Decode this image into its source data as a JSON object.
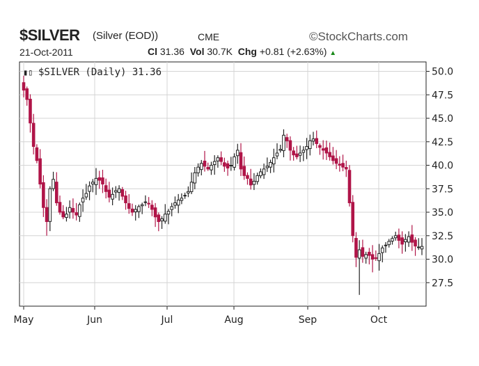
{
  "header": {
    "symbol": "$SILVER",
    "description": "(Silver (EOD))",
    "exchange": "CME",
    "brand": "StockCharts.com",
    "date": "21-Oct-2011",
    "close_label": "Cl",
    "close_value": "31.36",
    "volume_label": "Vol",
    "volume_value": "30.7K",
    "change_label": "Chg",
    "change_value": "+0.81 (+2.63%)",
    "legend": "$SILVER (Daily) 31.36"
  },
  "colors": {
    "up": "#222222",
    "down": "#b01548",
    "grid": "#d4d4d4",
    "axis": "#222222",
    "background": "#ffffff"
  },
  "chart_data": {
    "type": "candlestick",
    "title": "$SILVER (Daily) 31.36",
    "ylim": [
      25.0,
      51.0
    ],
    "yticks": [
      27.5,
      30.0,
      32.5,
      35.0,
      37.5,
      40.0,
      42.5,
      45.0,
      47.5,
      50.0
    ],
    "xticks": [
      "May",
      "Jun",
      "Jul",
      "Aug",
      "Sep",
      "Oct"
    ],
    "y_axis_position": "right",
    "grid": true,
    "series": [
      {
        "values": [
          48.0,
          47.0,
          44.5,
          42.0,
          40.5,
          38.0,
          35.5,
          34.0,
          37.5,
          38.5,
          36.0,
          35.0,
          34.5,
          34.8,
          35.5,
          35.0,
          34.7,
          35.8,
          36.5,
          37.0,
          37.8,
          38.2,
          38.6,
          38.4,
          38.0,
          37.2,
          36.6,
          36.9,
          37.3,
          37.5,
          36.7,
          36.0,
          35.4,
          35.0,
          35.3,
          35.6,
          35.8,
          36.1,
          35.9,
          35.3,
          34.5,
          34.0,
          34.3,
          34.8,
          35.1,
          35.6,
          36.0,
          36.3,
          36.5,
          36.8,
          37.2,
          38.2,
          39.2,
          39.8,
          40.2,
          39.9,
          39.6,
          40.0,
          40.4,
          40.8,
          40.4,
          39.9,
          39.7,
          40.0,
          40.9,
          41.6,
          39.6,
          38.9,
          38.6,
          37.9,
          38.3,
          38.9,
          39.3,
          39.6,
          39.9,
          40.3,
          40.8,
          41.3,
          41.7,
          43.2,
          42.6,
          41.6,
          41.1,
          40.9,
          41.3,
          41.6,
          42.0,
          42.6,
          42.8,
          42.3,
          41.9,
          41.6,
          41.3,
          40.9,
          40.5,
          40.2,
          40.0,
          39.8,
          39.6,
          36.0,
          32.5,
          30.2,
          31.0,
          30.3,
          30.5,
          30.4,
          30.0,
          30.1,
          30.6,
          31.2,
          31.5,
          31.9,
          32.2,
          32.5,
          32.0,
          31.6,
          32.1,
          32.4,
          31.8,
          31.4,
          31.3,
          31.36
        ]
      }
    ]
  }
}
